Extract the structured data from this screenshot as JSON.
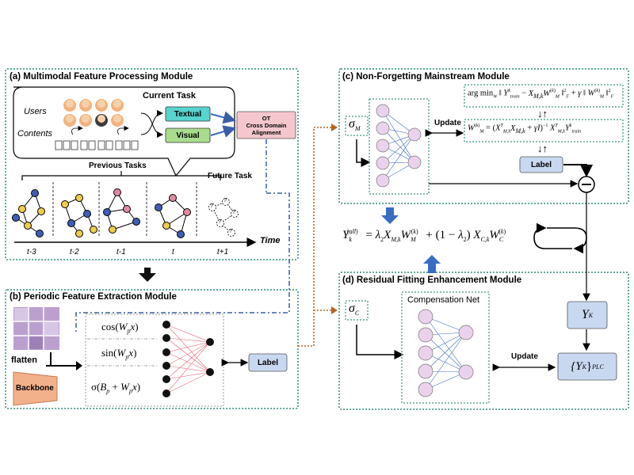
{
  "panels": {
    "a": {
      "title": "(a) Multimodal Feature Processing Module"
    },
    "b": {
      "title": "(b) Periodic Feature Extraction Module"
    },
    "c": {
      "title": "(c) Non-Forgetting Mainstream Module"
    },
    "d": {
      "title": "(d) Residual Fitting Enhancement Module"
    }
  },
  "panel_a": {
    "current_task": "Current Task",
    "users": "Users",
    "contents": "Contents",
    "textual": "Textual",
    "visual": "Visual",
    "ot_line1": "OT",
    "ot_line2": "Cross Domain",
    "ot_line3": "Alignment",
    "previous_tasks": "Previous Tasks",
    "future_task": "Future Task",
    "time": "Time",
    "ticks": [
      "t-3",
      "t-2",
      "t-1",
      "t",
      "t+1"
    ],
    "unknown_mark": "?"
  },
  "panel_b": {
    "flatten": "flatten",
    "backbone": "Backbone",
    "cos_fn": "cos(",
    "sin_fn": "sin(",
    "sigma_fn": "σ(",
    "label": "Label"
  },
  "panel_c": {
    "sigma": "σ",
    "sigma_sub": "M",
    "update": "Update",
    "label": "Label",
    "minus": "−"
  },
  "panel_d": {
    "sigma": "σ",
    "sigma_sub": "C",
    "compensation_net": "Compensation Net",
    "update": "Update",
    "yk": "Y",
    "yk_sub": "K",
    "yk_plc": "{Y",
    "yk_plc_sub": "K",
    "yk_plc_close": "}",
    "plc": "PLC"
  },
  "colors": {
    "panel_border": "#5ea89a",
    "textual_fill": "#57d4cf",
    "visual_fill": "#a9dc8f",
    "ot_fill": "#f3c7cc",
    "label_fill": "#c9d8f1",
    "node_fill": "#ebd2ec",
    "arrow_blue": "#3b6cc4",
    "dash_blue": "#3a5fa8",
    "dot_brown": "#b5651d",
    "graph_blue": "#3f5db8",
    "graph_yellow": "#efcb4e",
    "graph_pink": "#e08aa1"
  }
}
